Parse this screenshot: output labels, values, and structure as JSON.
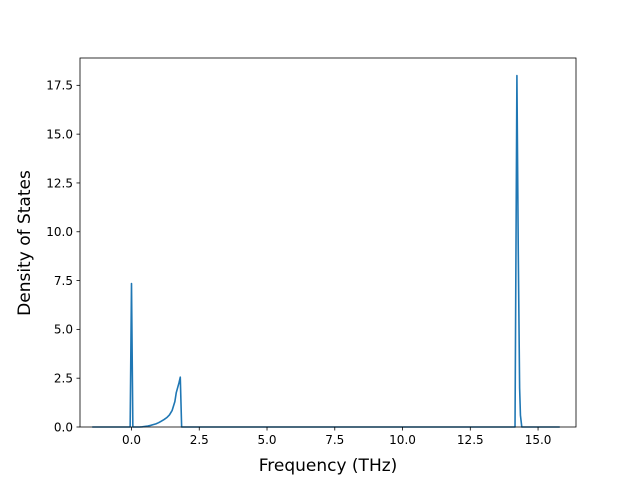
{
  "chart_data": {
    "type": "line",
    "title": "",
    "xlabel": "Frequency (THz)",
    "ylabel": "Density of States",
    "xlim": [
      -1.9,
      16.4
    ],
    "ylim": [
      0,
      18.9
    ],
    "grid": false,
    "xticks": [
      "0.0",
      "2.5",
      "5.0",
      "7.5",
      "10.0",
      "12.5",
      "15.0"
    ],
    "xtick_values": [
      0,
      2.5,
      5.0,
      7.5,
      10.0,
      12.5,
      15.0
    ],
    "yticks": [
      "0.0",
      "2.5",
      "5.0",
      "7.5",
      "10.0",
      "12.5",
      "15.0",
      "17.5"
    ],
    "ytick_values": [
      0,
      2.5,
      5.0,
      7.5,
      10.0,
      12.5,
      15.0,
      17.5
    ],
    "line_color": "#1f77b4",
    "series": [
      {
        "x": [
          -1.45,
          -0.05,
          0.0,
          0.05,
          0.12,
          0.2,
          0.3,
          0.4,
          0.5,
          0.6,
          0.7,
          0.8,
          0.9,
          1.0,
          1.1,
          1.2,
          1.3,
          1.4,
          1.5,
          1.6,
          1.65,
          1.7,
          1.75,
          1.8,
          1.85,
          1.9,
          14.15,
          14.22,
          14.27,
          14.32,
          14.35,
          14.4,
          15.8
        ],
        "y": [
          0.0,
          0.0,
          7.35,
          0.0,
          0.0,
          0.0,
          0.0,
          0.01,
          0.03,
          0.05,
          0.08,
          0.12,
          0.16,
          0.22,
          0.3,
          0.38,
          0.48,
          0.62,
          0.85,
          1.3,
          1.75,
          2.0,
          2.25,
          2.55,
          0.0,
          0.0,
          0.0,
          18.0,
          9.0,
          2.0,
          0.6,
          0.0,
          0.0
        ]
      }
    ]
  }
}
